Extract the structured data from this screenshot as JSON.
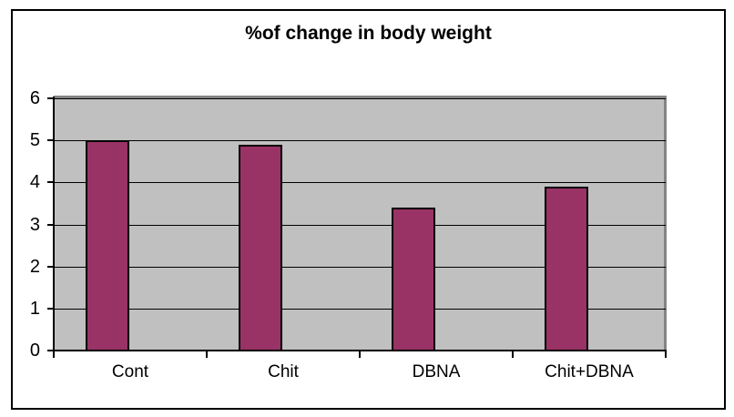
{
  "chart_data": {
    "type": "bar",
    "title": "%of change in body weight",
    "categories": [
      "Cont",
      "Chit",
      "DBNA",
      "Chit+DBNA"
    ],
    "values": [
      5.0,
      4.9,
      3.4,
      3.9
    ],
    "xlabel": "",
    "ylabel": "",
    "ylim": [
      0,
      6
    ],
    "yticks": [
      0,
      1,
      2,
      3,
      4,
      5,
      6
    ],
    "grid": true,
    "legend": false,
    "colors": {
      "bar_fill": "#993366",
      "bar_border": "#000000",
      "plot_background": "#C0C0C0",
      "plot_border": "#848484",
      "gridline": "#000000",
      "axis": "#000000",
      "chart_border": "#000000",
      "page_background": "#FFFFFF",
      "text": "#000000"
    }
  }
}
